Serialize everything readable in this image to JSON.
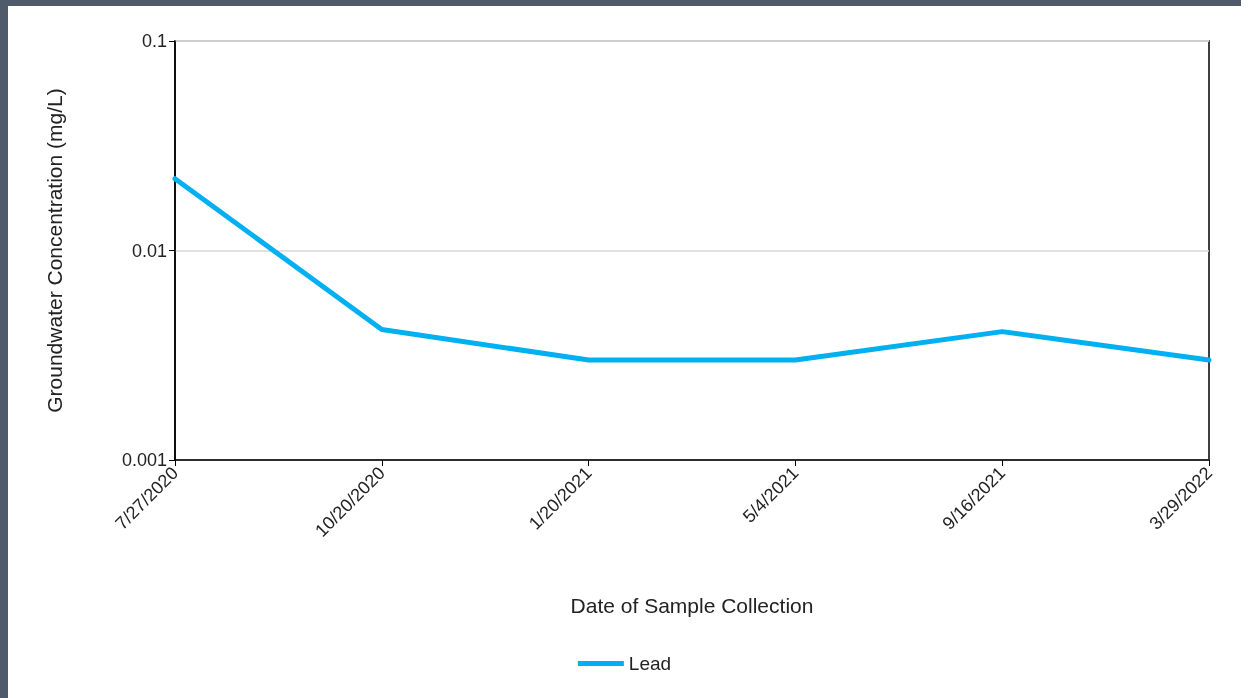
{
  "chart_data": {
    "type": "line",
    "xlabel": "Date of Sample Collection",
    "ylabel": "Groundwater Concentration (mg/L)",
    "categories": [
      "7/27/2020",
      "10/20/2020",
      "1/20/2021",
      "5/4/2021",
      "9/16/2021",
      "3/29/2022"
    ],
    "series": [
      {
        "name": "Lead",
        "color": "#00b0f0",
        "values": [
          0.022,
          0.0042,
          0.003,
          0.003,
          0.0041,
          0.003
        ]
      }
    ],
    "log": "y",
    "ylim": [
      0.001,
      0.1
    ],
    "yticks": [
      0.001,
      0.01,
      0.1
    ],
    "grid": "y",
    "legend": "bottom",
    "marker": "none",
    "line_style": "solid"
  }
}
